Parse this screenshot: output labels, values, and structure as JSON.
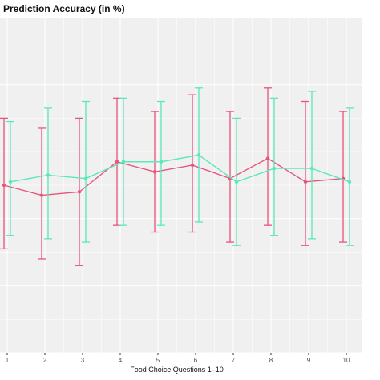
{
  "chart_data": {
    "type": "line",
    "title": "Prediction Accuracy (in %)",
    "xlabel": "Food Choice Questions 1–10",
    "ylabel": "",
    "x": [
      1,
      2,
      3,
      4,
      5,
      6,
      7,
      8,
      9,
      10
    ],
    "x_tick_labels": [
      "1",
      "2",
      "3",
      "4",
      "5",
      "6",
      "7",
      "8",
      "9",
      "10"
    ],
    "ylim": [
      0,
      100
    ],
    "grid": true,
    "background": "#f0f0f0",
    "series": [
      {
        "color": "#e8557a",
        "values": [
          50,
          47,
          48,
          57,
          54,
          56,
          52,
          58,
          51,
          52
        ],
        "error_lower": [
          31,
          28,
          26,
          38,
          36,
          36,
          33,
          38,
          32,
          33
        ],
        "error_upper": [
          70,
          67,
          70,
          76,
          72,
          77,
          72,
          79,
          75,
          72
        ]
      },
      {
        "color": "#5be8bc",
        "values": [
          51,
          53,
          52,
          57,
          57,
          59,
          51,
          55,
          55,
          51
        ],
        "error_lower": [
          35,
          34,
          33,
          38,
          38,
          39,
          32,
          35,
          34,
          32
        ],
        "error_upper": [
          69,
          73,
          75,
          76,
          75,
          79,
          70,
          76,
          78,
          73
        ]
      }
    ]
  }
}
